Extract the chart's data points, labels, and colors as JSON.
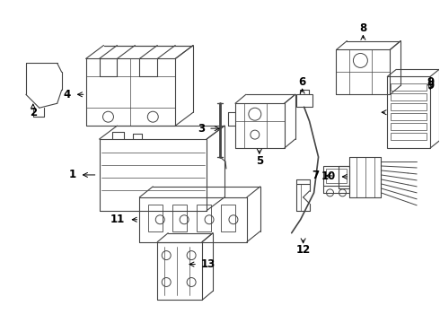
{
  "background_color": "#ffffff",
  "line_color": "#444444",
  "text_color": "#000000",
  "fig_w": 4.9,
  "fig_h": 3.6,
  "dpi": 100
}
